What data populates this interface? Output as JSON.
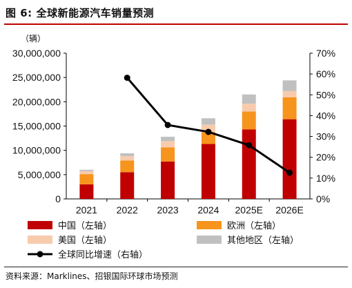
{
  "figure": {
    "number": "图 6:",
    "title": "全球新能源汽车销量预测"
  },
  "source": {
    "prefix": "资料来源：",
    "text": "Marklines、招银国际环球市场预测"
  },
  "chart_data": {
    "type": "bar",
    "stacked": true,
    "unit_label": "（辆）",
    "categories": [
      "2021",
      "2022",
      "2023",
      "2024",
      "2025E",
      "2026E"
    ],
    "left_axis": {
      "ylim": [
        0,
        30000000
      ],
      "ticks": [
        0,
        5000000,
        10000000,
        15000000,
        20000000,
        25000000,
        30000000
      ],
      "tick_labels": [
        "0",
        "5,000,000",
        "10,000,000",
        "15,000,000",
        "20,000,000",
        "25,000,000",
        "30,000,000"
      ]
    },
    "right_axis": {
      "ylim": [
        0,
        70
      ],
      "ticks": [
        0,
        10,
        20,
        30,
        40,
        50,
        60,
        70
      ],
      "tick_labels": [
        "0%",
        "10%",
        "20%",
        "30%",
        "40%",
        "50%",
        "60%",
        "70%"
      ]
    },
    "series": [
      {
        "name": "中国（左轴）",
        "axis": "left",
        "color": "#c00000",
        "values": [
          3000000,
          5500000,
          7700000,
          11300000,
          14300000,
          16400000
        ]
      },
      {
        "name": "欧洲（左轴）",
        "axis": "left",
        "color": "#f7941d",
        "values": [
          2100000,
          2400000,
          2900000,
          2400000,
          3700000,
          4500000
        ]
      },
      {
        "name": "美国（左轴）",
        "axis": "left",
        "color": "#f8cbad",
        "values": [
          600000,
          900000,
          1300000,
          1600000,
          1600000,
          1300000
        ]
      },
      {
        "name": "其他地区（左轴）",
        "axis": "left",
        "color": "#c0c0c0",
        "values": [
          300000,
          600000,
          900000,
          1300000,
          1900000,
          2200000
        ]
      }
    ],
    "line_series": {
      "name": "全球同比增速（右轴）",
      "axis": "right",
      "color": "#000000",
      "x": [
        "2022",
        "2023",
        "2024",
        "2025E",
        "2026E"
      ],
      "values": [
        58.2,
        35.5,
        32.2,
        25.8,
        12.6
      ]
    },
    "legend_placement": "bottom",
    "grid": false
  }
}
